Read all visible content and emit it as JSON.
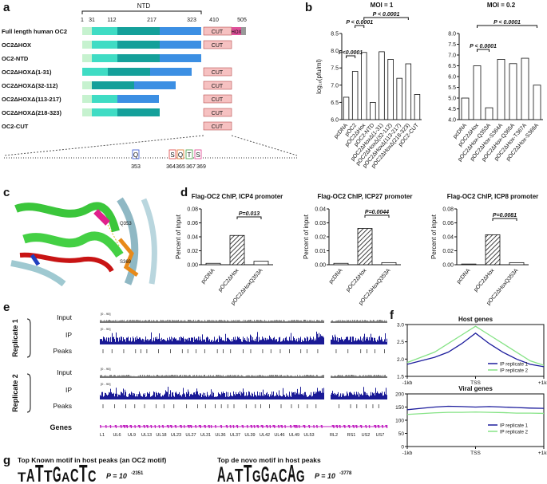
{
  "panel_labels": [
    "a",
    "b",
    "c",
    "d",
    "e",
    "f",
    "g"
  ],
  "panel_a": {
    "domain_label": "NTD",
    "positions": [
      1,
      31,
      112,
      217,
      323,
      410,
      505
    ],
    "constructs": [
      "Full length human OC2",
      "OC2ΔHOX",
      "OC2-NTD",
      "OC2ΔHOXΔ(1-31)",
      "OC2ΔHOXΔ(32-112)",
      "OC2ΔHOXΔ(113-217)",
      "OC2ΔHOXΔ(218-323)",
      "OC2-CUT"
    ],
    "cut_label": "CUT",
    "hox_label": "HOX",
    "residues": [
      {
        "letter": "Q",
        "number": 353
      },
      {
        "letter": "S",
        "number": 364
      },
      {
        "letter": "Q",
        "number": 365
      },
      {
        "letter": "T",
        "number": 367
      },
      {
        "letter": "S",
        "number": 369
      }
    ]
  },
  "panel_c": {
    "labels": [
      "Q353",
      "S369"
    ]
  },
  "panel_e": {
    "replicates": [
      "Replicate 1",
      "Replicate 2"
    ],
    "tracks": [
      "Input",
      "IP",
      "Peaks"
    ],
    "genes_label": "Genes",
    "track_range": "[0 - 90]",
    "gene_names": [
      "L1",
      "UL6",
      "UL9",
      "UL13",
      "UL18",
      "UL23",
      "UL27",
      "UL31",
      "UL36",
      "UL37",
      "UL39",
      "UL42",
      "UL46",
      "UL49",
      "UL53",
      "RL2",
      "RS1",
      "US2",
      "US7"
    ]
  },
  "panel_g": {
    "motifs": [
      {
        "title": "Top Known motif in host peaks (an OC2 motif)",
        "letters": [
          "T",
          "A",
          "T",
          "T",
          "G",
          "A",
          "C",
          "T",
          "C"
        ],
        "p_base": "P = 10",
        "p_exp": "-2351"
      },
      {
        "title": "Top de novo motif in host peaks",
        "letters": [
          "A",
          "A",
          "T",
          "T",
          "G",
          "G",
          "A",
          "C",
          "A",
          "G"
        ],
        "p_base": "P = 10",
        "p_exp": "-3778"
      }
    ]
  },
  "chart_data": [
    {
      "type": "bar",
      "title": "MOI = 1",
      "ylabel": "log₁₀(pfu/ml)",
      "categories": [
        "pcDNA",
        "pOC2",
        "pOC2ΔHox",
        "pOC2-NTD",
        "pOC2ΔHoxΔ(1-31)",
        "pOC2ΔHoxΔ(32-112)",
        "pOC2ΔHoxΔ(113-217)",
        "pOC2ΔHoxΔ(218-323)",
        "pOC2-CUT"
      ],
      "values": [
        6.65,
        7.4,
        7.95,
        6.5,
        7.97,
        7.75,
        7.2,
        7.62,
        6.73
      ],
      "color": "#ffffff",
      "ylim": [
        6.0,
        8.5
      ],
      "yticks": [
        {
          "value": 6.0,
          "label": "6.0"
        },
        6.5,
        {
          "value": 7.0,
          "label": "7.0"
        },
        7.5,
        {
          "value": 8.0,
          "label": "8.0"
        },
        8.5
      ],
      "annotations": [
        "P<0.0001",
        "P < 0.0001",
        "P < 0.0001"
      ]
    },
    {
      "type": "bar",
      "title": "MOI = 0.2",
      "categories": [
        "pcDNA",
        "pOC2ΔHox",
        "pOC2ΔHox-Q353A",
        "pOC2ΔHox-S364A",
        "pOC2ΔHox-Q365A",
        "pOC2ΔHox-T367A",
        "pOC2ΔHox-S369A"
      ],
      "values": [
        5.0,
        6.5,
        4.55,
        6.8,
        6.6,
        6.85,
        5.6
      ],
      "color": "#ffffff",
      "ylim": [
        4.0,
        8.0
      ],
      "yticks": [
        {
          "value": 4.0,
          "label": "4.0"
        },
        4.5,
        {
          "value": 5.0,
          "label": "5.0"
        },
        5.5,
        {
          "value": 6.0,
          "label": "6.0"
        },
        6.5,
        {
          "value": 7.0,
          "label": "7.0"
        },
        7.5,
        {
          "value": 8.0,
          "label": "8.0"
        }
      ],
      "annotations": [
        "P < 0.0001",
        "P < 0.0001"
      ]
    },
    {
      "type": "bar",
      "title": "Flag-OC2 ChIP, ICP4 promoter",
      "ylabel": "Percent of input",
      "categories": [
        "pcDNA",
        "pOC2ΔHox",
        "pOC2ΔHoxQ353A"
      ],
      "values": [
        0.002,
        0.042,
        0.005
      ],
      "color": "#ffffff",
      "patterns": [
        "none",
        "hatched",
        "none"
      ],
      "ylim": [
        0,
        0.08
      ],
      "yticks": [
        {
          "value": 0,
          "label": "0.00"
        },
        0.02,
        0.04,
        0.06,
        0.08
      ],
      "annotations": [
        "P=0.013"
      ]
    },
    {
      "type": "bar",
      "title": "Flag-OC2 ChIP, ICP27 promoter",
      "ylabel": "Percent of input",
      "categories": [
        "pcDNA",
        "pOC2ΔHox",
        "pOC2ΔHoxQ353A"
      ],
      "values": [
        0.001,
        0.026,
        0.0015
      ],
      "color": "#ffffff",
      "patterns": [
        "none",
        "hatched",
        "none"
      ],
      "ylim": [
        0,
        0.04
      ],
      "yticks": [
        {
          "value": 0,
          "label": "0.00"
        },
        0.01,
        0.02,
        0.03,
        0.04
      ],
      "annotations": [
        "P=0.0044"
      ]
    },
    {
      "type": "bar",
      "title": "Flag-OC2 ChIP, ICP8 promoter",
      "ylabel": "Percent of input",
      "categories": [
        "pcDNA",
        "pOC2ΔHox",
        "pOC2ΔHoxQ353A"
      ],
      "values": [
        0.001,
        0.043,
        0.003
      ],
      "color": "#ffffff",
      "patterns": [
        "none",
        "hatched",
        "none"
      ],
      "ylim": [
        0,
        0.08
      ],
      "yticks": [
        {
          "value": 0,
          "label": "0.00"
        },
        0.02,
        0.04,
        0.06,
        0.08
      ],
      "annotations": [
        "P=0.0081"
      ]
    },
    {
      "type": "line",
      "title": "Host genes",
      "x": [
        -1000,
        -800,
        -600,
        -400,
        -200,
        0,
        200,
        400,
        600,
        800,
        1000
      ],
      "xlim": [
        -1000,
        1000
      ],
      "xticks": [
        {
          "value": -1000,
          "label": "-1kb"
        },
        {
          "value": 0,
          "label": "TSS"
        },
        {
          "value": 1000,
          "label": "+1kb"
        }
      ],
      "ylim": [
        1.5,
        3.0
      ],
      "yticks": [
        1.5,
        {
          "value": 2.0,
          "label": "2.0"
        },
        2.5,
        {
          "value": 3.0,
          "label": "3.0"
        }
      ],
      "legend": "lower-right",
      "series": [
        {
          "name": "IP replicate 1",
          "color": "#1c1c9c",
          "values": [
            1.85,
            1.95,
            2.05,
            2.2,
            2.45,
            2.75,
            2.45,
            2.2,
            2.0,
            1.85,
            1.78
          ]
        },
        {
          "name": "IP replicate 2",
          "color": "#86e386",
          "values": [
            1.9,
            2.05,
            2.2,
            2.45,
            2.7,
            2.95,
            2.7,
            2.45,
            2.2,
            1.95,
            1.82
          ]
        }
      ]
    },
    {
      "type": "line",
      "title": "Viral genes",
      "x": [
        -1000,
        -800,
        -600,
        -400,
        -200,
        0,
        200,
        400,
        600,
        800,
        1000
      ],
      "xlim": [
        -1000,
        1000
      ],
      "xticks": [
        {
          "value": -1000,
          "label": "-1kb"
        },
        {
          "value": 0,
          "label": "TSS"
        },
        {
          "value": 1000,
          "label": "+1kb"
        }
      ],
      "ylim": [
        0,
        200
      ],
      "yticks": [
        0,
        50,
        100,
        150,
        200
      ],
      "legend": "center-right",
      "series": [
        {
          "name": "IP replicate 1",
          "color": "#1c1c9c",
          "values": [
            140,
            145,
            150,
            153,
            152,
            150,
            152,
            150,
            148,
            146,
            145
          ]
        },
        {
          "name": "IP replicate 2",
          "color": "#86e386",
          "values": [
            122,
            125,
            128,
            130,
            130,
            131,
            130,
            129,
            127,
            127,
            126
          ]
        }
      ]
    }
  ]
}
